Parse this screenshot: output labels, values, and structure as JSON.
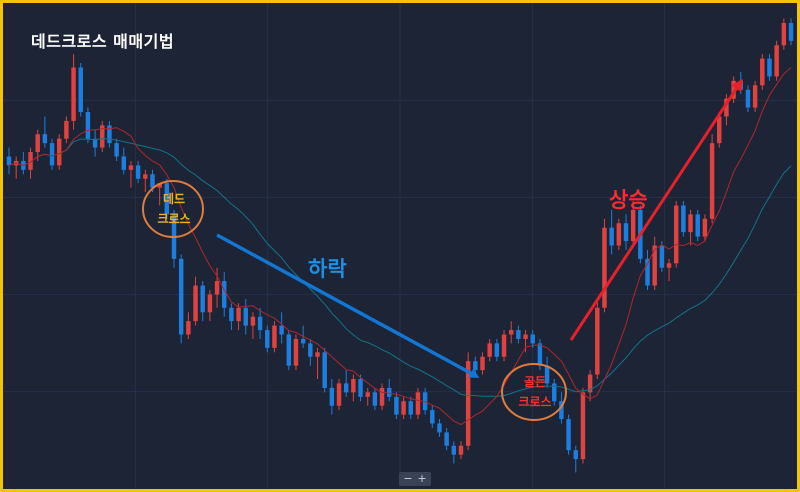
{
  "title": "데드크로스 매매기법",
  "annotations": {
    "fall": "하락",
    "rise": "상승",
    "dead_cross": [
      "데드",
      "크로스"
    ],
    "golden_cross": [
      "골든",
      "크로스"
    ]
  },
  "zoom": {
    "minus": "−",
    "plus": "+"
  },
  "colors": {
    "background": "#1c2436",
    "border": "#f5c400",
    "up_candle": "#e0433f",
    "down_candle": "#1c7fe0",
    "fast_ma": "#b3262a",
    "slow_ma": "#13748a",
    "fall_arrow": "#1276d4",
    "rise_arrow": "#e8202a",
    "circle": "#e07c3c"
  },
  "chart_data": {
    "type": "candlestick",
    "description": "",
    "ylim": [
      0,
      100
    ],
    "candles": [
      {
        "o": 70,
        "h": 72,
        "l": 66,
        "c": 68
      },
      {
        "o": 68,
        "h": 70,
        "l": 65,
        "c": 69
      },
      {
        "o": 69,
        "h": 71,
        "l": 66,
        "c": 67
      },
      {
        "o": 67,
        "h": 72,
        "l": 65,
        "c": 71
      },
      {
        "o": 71,
        "h": 76,
        "l": 69,
        "c": 75
      },
      {
        "o": 75,
        "h": 79,
        "l": 72,
        "c": 73
      },
      {
        "o": 73,
        "h": 74,
        "l": 67,
        "c": 68
      },
      {
        "o": 68,
        "h": 75,
        "l": 67,
        "c": 74
      },
      {
        "o": 74,
        "h": 79,
        "l": 73,
        "c": 78
      },
      {
        "o": 78,
        "h": 93,
        "l": 76,
        "c": 90
      },
      {
        "o": 90,
        "h": 91,
        "l": 79,
        "c": 80
      },
      {
        "o": 80,
        "h": 81,
        "l": 73,
        "c": 74
      },
      {
        "o": 74,
        "h": 76,
        "l": 70,
        "c": 72
      },
      {
        "o": 72,
        "h": 78,
        "l": 71,
        "c": 77
      },
      {
        "o": 77,
        "h": 78,
        "l": 72,
        "c": 73
      },
      {
        "o": 73,
        "h": 74,
        "l": 69,
        "c": 70
      },
      {
        "o": 70,
        "h": 72,
        "l": 66,
        "c": 67
      },
      {
        "o": 67,
        "h": 69,
        "l": 63,
        "c": 68
      },
      {
        "o": 68,
        "h": 69,
        "l": 64,
        "c": 65
      },
      {
        "o": 65,
        "h": 67,
        "l": 62,
        "c": 66
      },
      {
        "o": 66,
        "h": 67,
        "l": 62,
        "c": 63
      },
      {
        "o": 63,
        "h": 64,
        "l": 59,
        "c": 64
      },
      {
        "o": 64,
        "h": 65,
        "l": 56,
        "c": 57
      },
      {
        "o": 57,
        "h": 58,
        "l": 45,
        "c": 47
      },
      {
        "o": 47,
        "h": 48,
        "l": 28,
        "c": 30
      },
      {
        "o": 30,
        "h": 35,
        "l": 29,
        "c": 33
      },
      {
        "o": 33,
        "h": 43,
        "l": 32,
        "c": 41
      },
      {
        "o": 41,
        "h": 42,
        "l": 33,
        "c": 35
      },
      {
        "o": 35,
        "h": 40,
        "l": 33,
        "c": 39
      },
      {
        "o": 39,
        "h": 45,
        "l": 36,
        "c": 42
      },
      {
        "o": 42,
        "h": 44,
        "l": 34,
        "c": 36
      },
      {
        "o": 36,
        "h": 37,
        "l": 31,
        "c": 33
      },
      {
        "o": 33,
        "h": 37,
        "l": 31,
        "c": 36
      },
      {
        "o": 36,
        "h": 38,
        "l": 30,
        "c": 32
      },
      {
        "o": 32,
        "h": 35,
        "l": 29,
        "c": 34
      },
      {
        "o": 34,
        "h": 36,
        "l": 29,
        "c": 31
      },
      {
        "o": 31,
        "h": 32,
        "l": 26,
        "c": 27
      },
      {
        "o": 27,
        "h": 33,
        "l": 26,
        "c": 32
      },
      {
        "o": 32,
        "h": 35,
        "l": 28,
        "c": 30
      },
      {
        "o": 30,
        "h": 31,
        "l": 22,
        "c": 23
      },
      {
        "o": 23,
        "h": 30,
        "l": 22,
        "c": 29
      },
      {
        "o": 29,
        "h": 32,
        "l": 27,
        "c": 28
      },
      {
        "o": 28,
        "h": 29,
        "l": 23,
        "c": 25
      },
      {
        "o": 25,
        "h": 27,
        "l": 20,
        "c": 26
      },
      {
        "o": 26,
        "h": 27,
        "l": 17,
        "c": 18
      },
      {
        "o": 18,
        "h": 20,
        "l": 12,
        "c": 14
      },
      {
        "o": 14,
        "h": 20,
        "l": 13,
        "c": 19
      },
      {
        "o": 19,
        "h": 22,
        "l": 16,
        "c": 17
      },
      {
        "o": 17,
        "h": 21,
        "l": 15,
        "c": 20
      },
      {
        "o": 20,
        "h": 21,
        "l": 15,
        "c": 16
      },
      {
        "o": 16,
        "h": 18,
        "l": 14,
        "c": 17
      },
      {
        "o": 17,
        "h": 18,
        "l": 13,
        "c": 14
      },
      {
        "o": 14,
        "h": 19,
        "l": 13,
        "c": 18
      },
      {
        "o": 18,
        "h": 20,
        "l": 15,
        "c": 16
      },
      {
        "o": 16,
        "h": 17,
        "l": 11,
        "c": 12
      },
      {
        "o": 12,
        "h": 16,
        "l": 11,
        "c": 15
      },
      {
        "o": 15,
        "h": 16,
        "l": 11,
        "c": 12
      },
      {
        "o": 12,
        "h": 18,
        "l": 11,
        "c": 17
      },
      {
        "o": 17,
        "h": 18,
        "l": 12,
        "c": 13
      },
      {
        "o": 13,
        "h": 14,
        "l": 9,
        "c": 10
      },
      {
        "o": 10,
        "h": 11,
        "l": 7,
        "c": 8
      },
      {
        "o": 8,
        "h": 9,
        "l": 4,
        "c": 5
      },
      {
        "o": 5,
        "h": 6,
        "l": 1,
        "c": 3
      },
      {
        "o": 3,
        "h": 6,
        "l": 2,
        "c": 5
      },
      {
        "o": 5,
        "h": 26,
        "l": 4,
        "c": 24
      },
      {
        "o": 24,
        "h": 25,
        "l": 21,
        "c": 22
      },
      {
        "o": 22,
        "h": 26,
        "l": 21,
        "c": 25
      },
      {
        "o": 25,
        "h": 29,
        "l": 24,
        "c": 28
      },
      {
        "o": 28,
        "h": 29,
        "l": 24,
        "c": 25
      },
      {
        "o": 25,
        "h": 31,
        "l": 24,
        "c": 30
      },
      {
        "o": 30,
        "h": 33,
        "l": 28,
        "c": 31
      },
      {
        "o": 31,
        "h": 32,
        "l": 28,
        "c": 29
      },
      {
        "o": 29,
        "h": 31,
        "l": 26,
        "c": 30
      },
      {
        "o": 30,
        "h": 31,
        "l": 27,
        "c": 28
      },
      {
        "o": 28,
        "h": 29,
        "l": 22,
        "c": 23
      },
      {
        "o": 23,
        "h": 25,
        "l": 18,
        "c": 19
      },
      {
        "o": 19,
        "h": 20,
        "l": 14,
        "c": 15
      },
      {
        "o": 15,
        "h": 17,
        "l": 10,
        "c": 11
      },
      {
        "o": 11,
        "h": 12,
        "l": 3,
        "c": 4
      },
      {
        "o": 4,
        "h": 5,
        "l": -1,
        "c": 2
      },
      {
        "o": 2,
        "h": 18,
        "l": 1,
        "c": 17
      },
      {
        "o": 17,
        "h": 22,
        "l": 15,
        "c": 21
      },
      {
        "o": 21,
        "h": 38,
        "l": 20,
        "c": 36
      },
      {
        "o": 36,
        "h": 56,
        "l": 35,
        "c": 54
      },
      {
        "o": 54,
        "h": 58,
        "l": 48,
        "c": 50
      },
      {
        "o": 50,
        "h": 56,
        "l": 49,
        "c": 55
      },
      {
        "o": 55,
        "h": 57,
        "l": 49,
        "c": 51
      },
      {
        "o": 51,
        "h": 60,
        "l": 50,
        "c": 58
      },
      {
        "o": 58,
        "h": 59,
        "l": 46,
        "c": 47
      },
      {
        "o": 47,
        "h": 49,
        "l": 40,
        "c": 41
      },
      {
        "o": 41,
        "h": 52,
        "l": 40,
        "c": 50
      },
      {
        "o": 50,
        "h": 51,
        "l": 44,
        "c": 45
      },
      {
        "o": 45,
        "h": 47,
        "l": 42,
        "c": 46
      },
      {
        "o": 46,
        "h": 60,
        "l": 45,
        "c": 59
      },
      {
        "o": 59,
        "h": 60,
        "l": 52,
        "c": 53
      },
      {
        "o": 53,
        "h": 58,
        "l": 50,
        "c": 57
      },
      {
        "o": 57,
        "h": 58,
        "l": 51,
        "c": 52
      },
      {
        "o": 52,
        "h": 57,
        "l": 51,
        "c": 56
      },
      {
        "o": 56,
        "h": 75,
        "l": 55,
        "c": 73
      },
      {
        "o": 73,
        "h": 80,
        "l": 72,
        "c": 79
      },
      {
        "o": 79,
        "h": 84,
        "l": 77,
        "c": 83
      },
      {
        "o": 83,
        "h": 88,
        "l": 82,
        "c": 87
      },
      {
        "o": 87,
        "h": 89,
        "l": 84,
        "c": 85
      },
      {
        "o": 85,
        "h": 86,
        "l": 80,
        "c": 81
      },
      {
        "o": 81,
        "h": 87,
        "l": 80,
        "c": 86
      },
      {
        "o": 86,
        "h": 93,
        "l": 85,
        "c": 92
      },
      {
        "o": 92,
        "h": 93,
        "l": 87,
        "c": 88
      },
      {
        "o": 88,
        "h": 96,
        "l": 87,
        "c": 95
      },
      {
        "o": 95,
        "h": 101,
        "l": 94,
        "c": 100
      },
      {
        "o": 100,
        "h": 101,
        "l": 95,
        "c": 96
      }
    ]
  }
}
